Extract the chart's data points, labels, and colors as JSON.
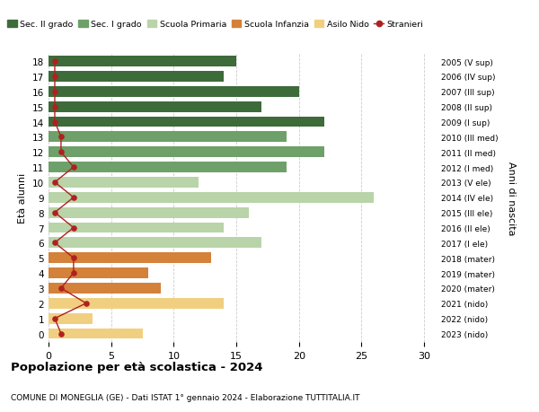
{
  "ages": [
    18,
    17,
    16,
    15,
    14,
    13,
    12,
    11,
    10,
    9,
    8,
    7,
    6,
    5,
    4,
    3,
    2,
    1,
    0
  ],
  "years": [
    "2005 (V sup)",
    "2006 (IV sup)",
    "2007 (III sup)",
    "2008 (II sup)",
    "2009 (I sup)",
    "2010 (III med)",
    "2011 (II med)",
    "2012 (I med)",
    "2013 (V ele)",
    "2014 (IV ele)",
    "2015 (III ele)",
    "2016 (II ele)",
    "2017 (I ele)",
    "2018 (mater)",
    "2019 (mater)",
    "2020 (mater)",
    "2021 (nido)",
    "2022 (nido)",
    "2023 (nido)"
  ],
  "bar_values": [
    15,
    14,
    20,
    17,
    22,
    19,
    22,
    19,
    12,
    26,
    16,
    14,
    17,
    13,
    8,
    9,
    14,
    3.5,
    7.5
  ],
  "stranieri_values": [
    0.5,
    0.5,
    0.5,
    0.5,
    0.5,
    1,
    1,
    2,
    0.5,
    2,
    0.5,
    2,
    0.5,
    2,
    2,
    1,
    3,
    0.5,
    1
  ],
  "colors": {
    "sec2": "#3d6b3a",
    "sec1": "#6ea06a",
    "primaria": "#b8d4a8",
    "infanzia": "#d4813a",
    "nido": "#f0d080",
    "stranieri": "#b02020"
  },
  "bar_colors": [
    "#3d6b3a",
    "#3d6b3a",
    "#3d6b3a",
    "#3d6b3a",
    "#3d6b3a",
    "#6ea06a",
    "#6ea06a",
    "#6ea06a",
    "#b8d4a8",
    "#b8d4a8",
    "#b8d4a8",
    "#b8d4a8",
    "#b8d4a8",
    "#d4813a",
    "#d4813a",
    "#d4813a",
    "#f0d080",
    "#f0d080",
    "#f0d080"
  ],
  "title": "Popolazione per età scolastica - 2024",
  "subtitle": "COMUNE DI MONEGLIA (GE) - Dati ISTAT 1° gennaio 2024 - Elaborazione TUTTITALIA.IT",
  "ylabel_left": "Età alunni",
  "ylabel_right": "Anni di nascita",
  "xlim": [
    0,
    31
  ],
  "xticks": [
    0,
    5,
    10,
    15,
    20,
    25,
    30
  ],
  "legend_labels": [
    "Sec. II grado",
    "Sec. I grado",
    "Scuola Primaria",
    "Scuola Infanzia",
    "Asilo Nido",
    "Stranieri"
  ],
  "legend_colors": [
    "#3d6b3a",
    "#6ea06a",
    "#b8d4a8",
    "#d4813a",
    "#f0d080",
    "#b02020"
  ],
  "bg_color": "#ffffff",
  "grid_color": "#cccccc"
}
